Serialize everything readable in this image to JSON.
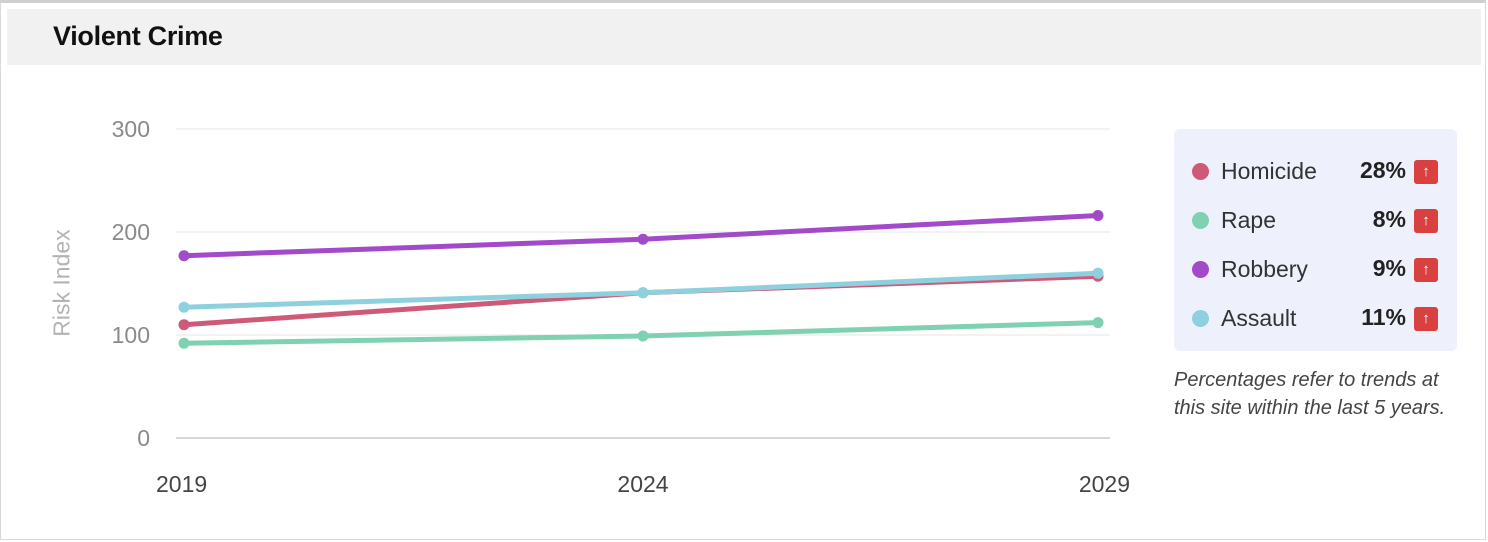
{
  "header": {
    "title": "Violent Crime"
  },
  "chart_data": {
    "type": "line",
    "title": "Violent Crime",
    "xlabel": "",
    "ylabel": "Risk Index",
    "x": [
      "2019",
      "2024",
      "2029"
    ],
    "ylim": [
      0,
      300
    ],
    "yticks": [
      "300",
      "200",
      "100",
      "0"
    ],
    "grid": true,
    "legend": "right",
    "series": [
      {
        "name": "Homicide",
        "color": "#cf5a78",
        "values": [
          110,
          141,
          157
        ]
      },
      {
        "name": "Rape",
        "color": "#7fd1b2",
        "values": [
          92,
          99,
          112
        ]
      },
      {
        "name": "Robbery",
        "color": "#a24ac9",
        "values": [
          177,
          193,
          216
        ]
      },
      {
        "name": "Assault",
        "color": "#8fd0de",
        "values": [
          127,
          141,
          160
        ]
      }
    ]
  },
  "legend": {
    "items": [
      {
        "name": "Homicide",
        "pct": "28%",
        "color": "#cf5a78",
        "trend_icon": "arrow-up-icon"
      },
      {
        "name": "Rape",
        "pct": "8%",
        "color": "#7fd1b2",
        "trend_icon": "arrow-up-icon"
      },
      {
        "name": "Robbery",
        "pct": "9%",
        "color": "#a24ac9",
        "trend_icon": "arrow-up-icon"
      },
      {
        "name": "Assault",
        "pct": "11%",
        "color": "#8fd0de",
        "trend_icon": "arrow-up-icon"
      }
    ],
    "note": "Percentages refer to trends at this site within the last 5 years."
  },
  "colors": {
    "trend_up": "#d94141",
    "legend_bg": "#eef1fb",
    "header_bg": "#f1f1f1"
  }
}
